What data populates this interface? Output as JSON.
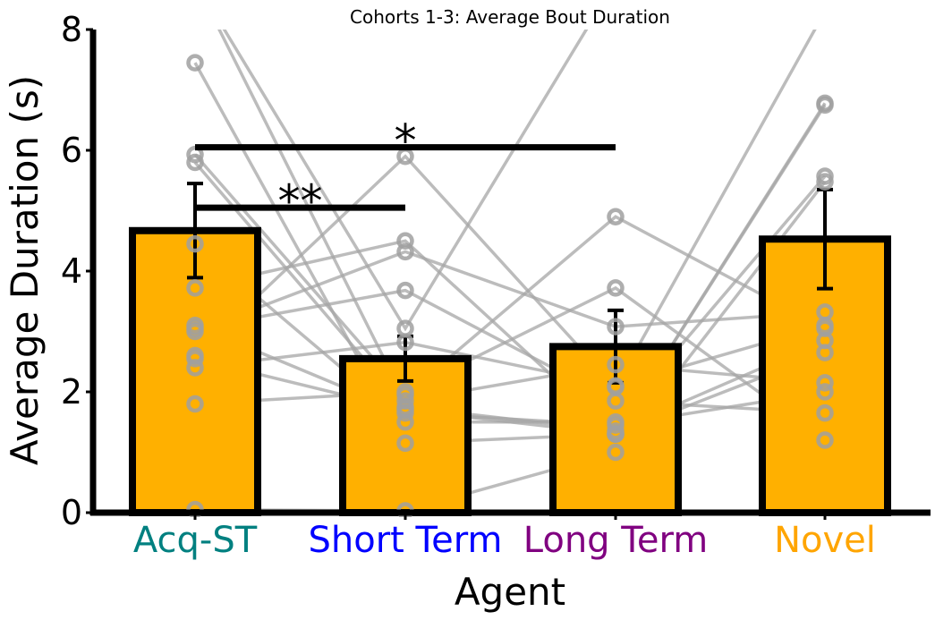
{
  "chart_data": {
    "type": "bar",
    "title": "Cohorts 1-3: Average Bout Duration",
    "xlabel": "Agent",
    "ylabel": "Average Duration (s)",
    "ylim": [
      0,
      8
    ],
    "yticks": [
      0,
      2,
      4,
      6,
      8
    ],
    "categories": [
      "Acq-ST",
      "Short Term",
      "Long Term",
      "Novel"
    ],
    "category_colors": [
      "#008080",
      "#0000ff",
      "#800080",
      "#ffa500"
    ],
    "bar_color": "#ffb000",
    "values": [
      4.67,
      2.55,
      2.75,
      4.53
    ],
    "errors": [
      0.78,
      0.37,
      0.6,
      0.82
    ],
    "subjects": [
      [
        7.45,
        1.15,
        1.3,
        6.78
      ],
      [
        5.93,
        1.95,
        4.9,
        3.05
      ],
      [
        5.8,
        1.75,
        1.35,
        2.85
      ],
      [
        4.45,
        1.5,
        1.5,
        5.57
      ],
      [
        3.72,
        4.5,
        1.3,
        2.65
      ],
      [
        3.1,
        1.65,
        1.45,
        2.0
      ],
      [
        3.05,
        3.68,
        1.85,
        1.65
      ],
      [
        3.0,
        4.32,
        3.08,
        3.32
      ],
      [
        2.6,
        5.9,
        2.08,
        8.3
      ],
      [
        2.55,
        1.7,
        1.3,
        6.75
      ],
      [
        2.4,
        2.82,
        2.1,
        3.1
      ],
      [
        1.8,
        2.0,
        3.72,
        1.2
      ],
      [
        0.05,
        0.03,
        1.0,
        5.48
      ],
      [
        8.8,
        1.85,
        2.45,
        2.15
      ],
      [
        8.8,
        3.05,
        8.8,
        8.8
      ]
    ],
    "significance": [
      {
        "from": 0,
        "to": 1,
        "y": 5.05,
        "label": "**"
      },
      {
        "from": 0,
        "to": 2,
        "y": 6.05,
        "label": "*"
      }
    ],
    "grid": false
  }
}
